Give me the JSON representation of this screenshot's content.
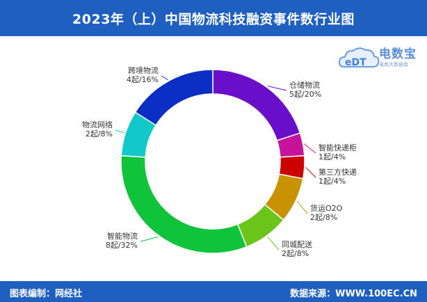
{
  "header": {
    "title": "2023年（上）中国物流科技融资事件数行业图"
  },
  "footer": {
    "left": "图表编制：网经社",
    "right": "数据来源：WWW.100EC.CN"
  },
  "logo": {
    "name": "电数宝",
    "sub": "电商大数据库",
    "mark": "eDT"
  },
  "colors": {
    "header_bg": "#1f5fbf",
    "footer_bg": "#1f5fbf"
  },
  "chart_data": {
    "type": "pie",
    "donut": true,
    "unit": "起",
    "slices": [
      {
        "name": "仓储物流",
        "value": 5,
        "percent": "20%",
        "color": "#6a0fc9",
        "label": "5起/20%"
      },
      {
        "name": "智能快递柜",
        "value": 1,
        "percent": "4%",
        "color": "#c7139b",
        "label": "1起/4%"
      },
      {
        "name": "第三方快递",
        "value": 1,
        "percent": "4%",
        "color": "#cc0000",
        "label": "1起/4%"
      },
      {
        "name": "货运O2O",
        "value": 2,
        "percent": "8%",
        "color": "#c89200",
        "label": "2起/8%"
      },
      {
        "name": "同城配送",
        "value": 2,
        "percent": "8%",
        "color": "#6bc41a",
        "label": "2起/8%"
      },
      {
        "name": "智能物流",
        "value": 8,
        "percent": "32%",
        "color": "#0fc33a",
        "label": "8起/32%"
      },
      {
        "name": "物流网络",
        "value": 2,
        "percent": "8%",
        "color": "#12c8c8",
        "label": "2起/8%"
      },
      {
        "name": "跨境物流",
        "value": 4,
        "percent": "16%",
        "color": "#0b2fc4",
        "label": "4起/16%"
      }
    ]
  }
}
